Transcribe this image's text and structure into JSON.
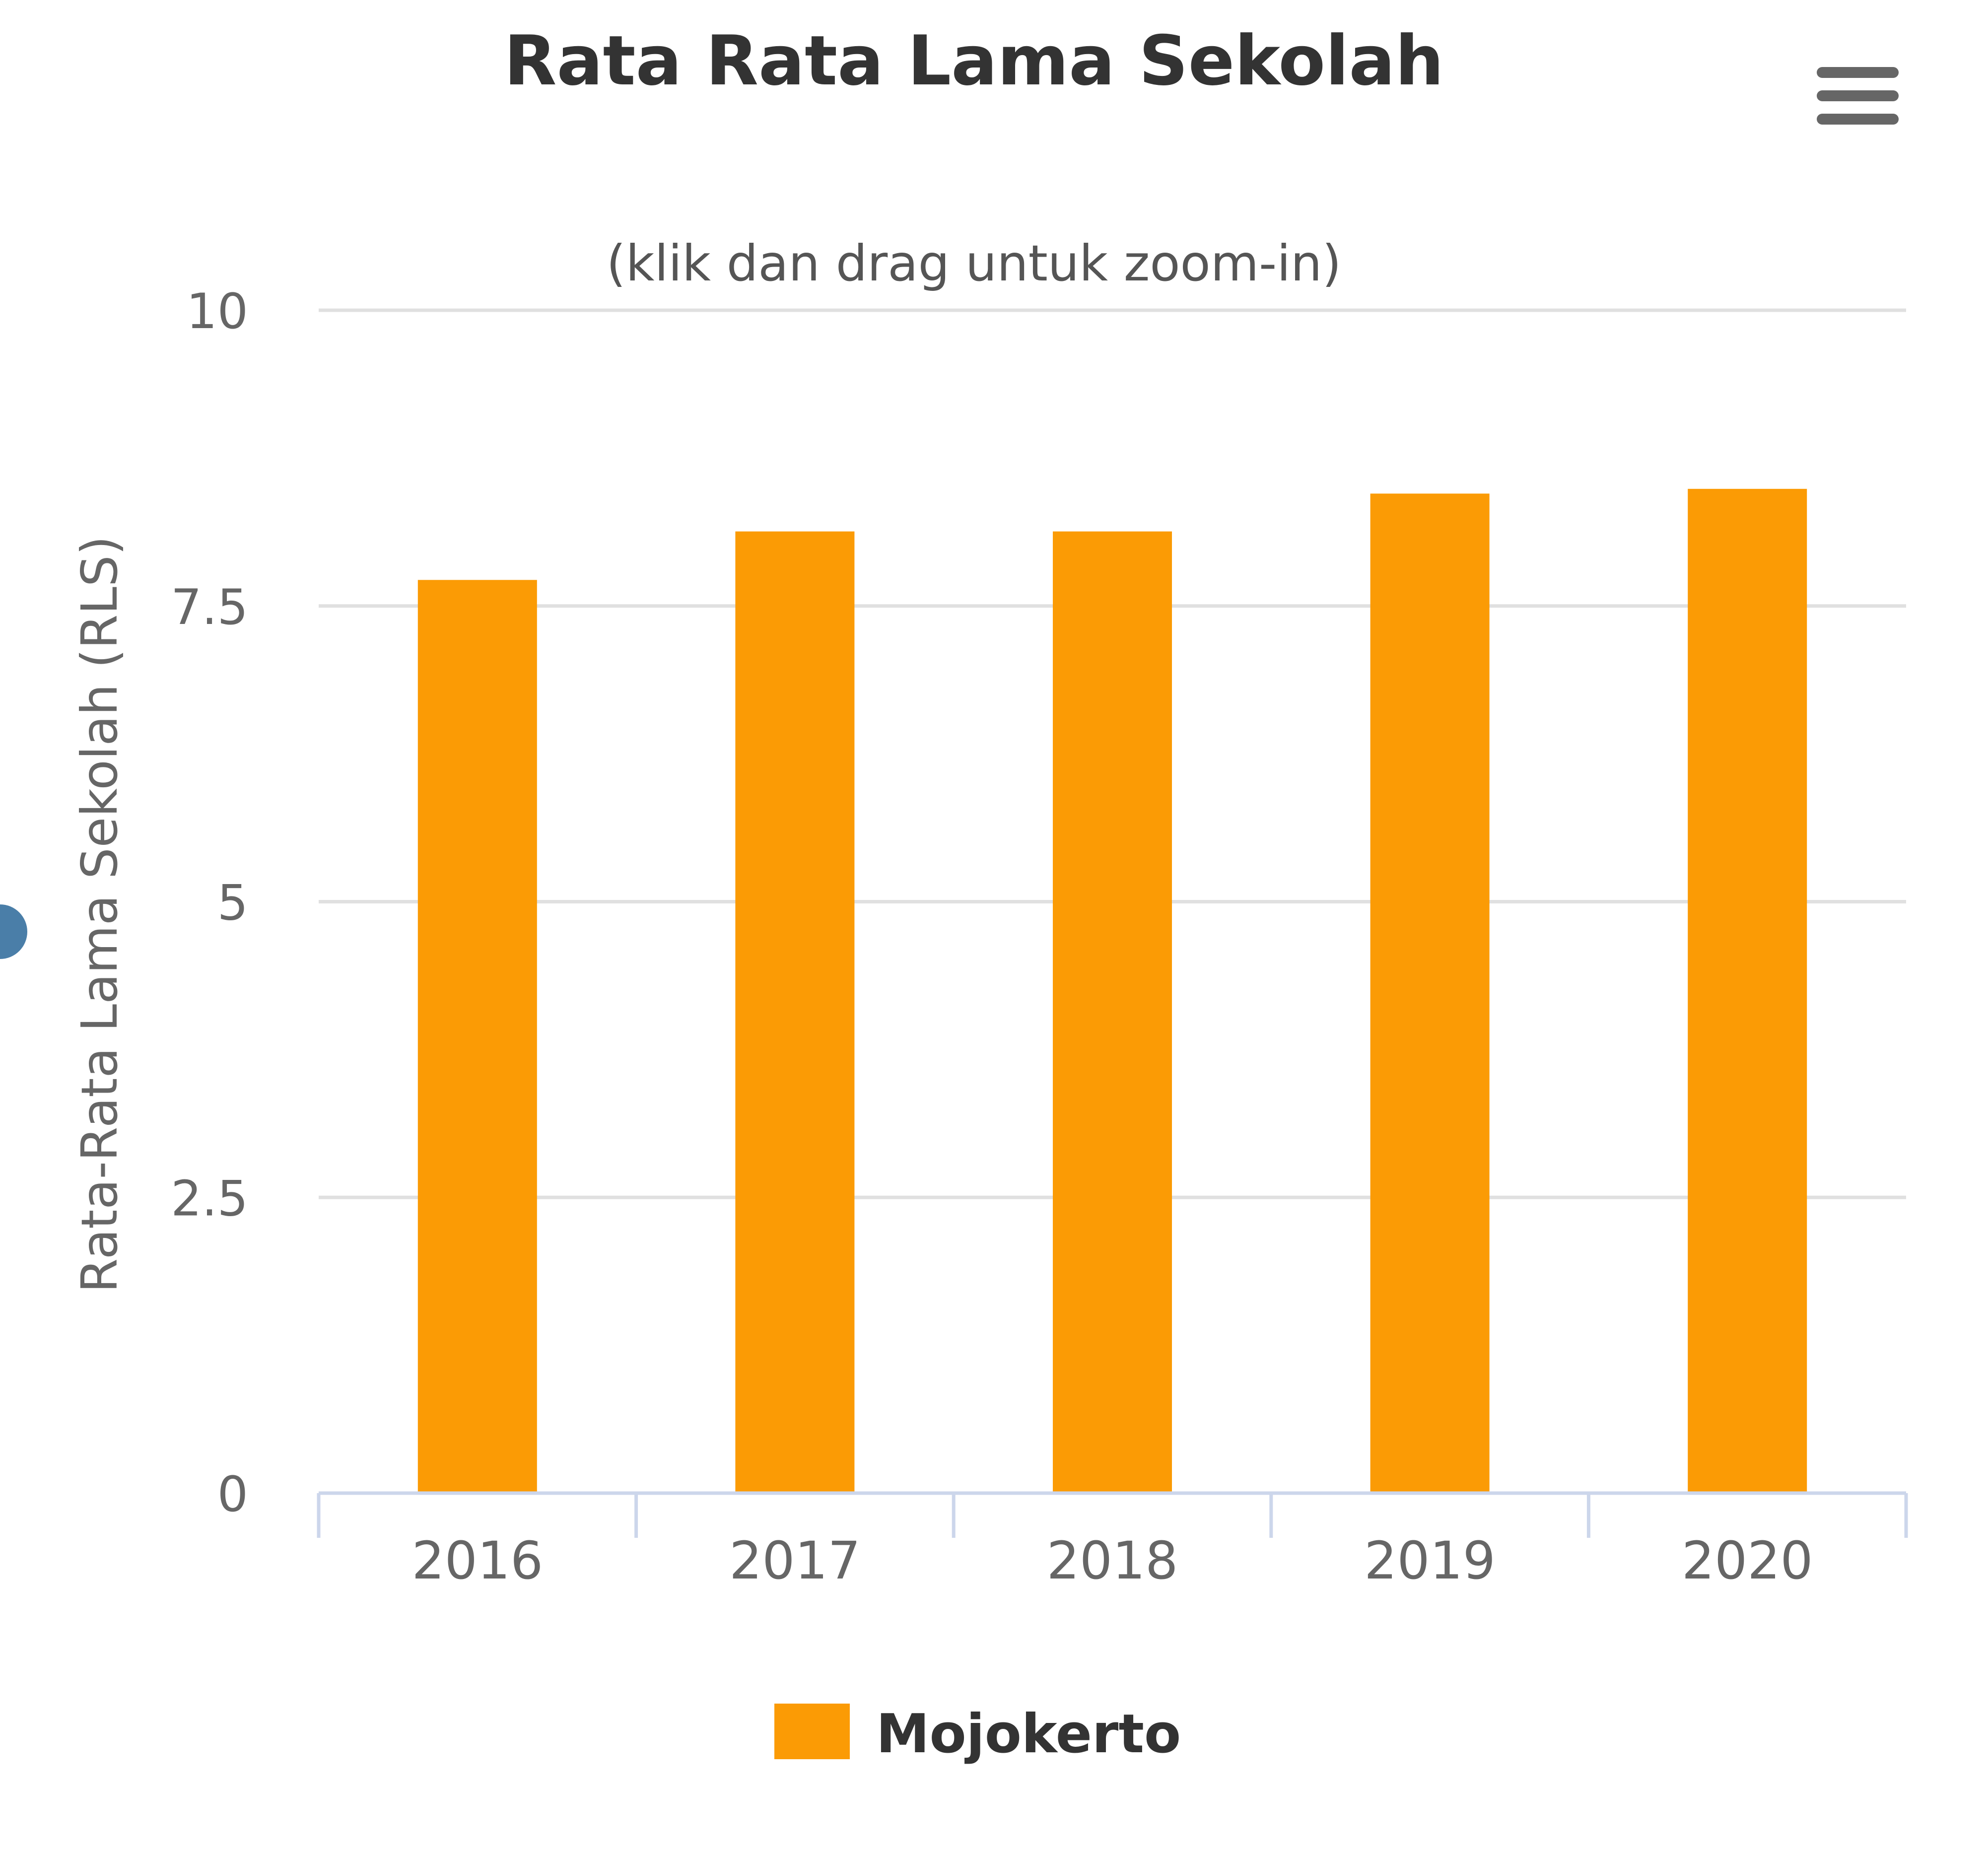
{
  "chart_data": {
    "type": "bar",
    "title": "Rata Rata Lama Sekolah",
    "subtitle": "(klik dan drag untuk zoom-in)",
    "xlabel": "",
    "ylabel": "Rata-Rata Lama Sekolah (RLS)",
    "categories": [
      "2016",
      "2017",
      "2018",
      "2019",
      "2020"
    ],
    "series": [
      {
        "name": "Mojokerto",
        "values": [
          7.72,
          8.13,
          8.13,
          8.45,
          8.49
        ],
        "color": "#FB9B05"
      }
    ],
    "ylim": [
      0,
      10
    ],
    "yticks": [
      "0",
      "2.5",
      "5",
      "7.5",
      "10"
    ],
    "grid": true,
    "legend_position": "bottom-center"
  },
  "colors": {
    "bar": "#FB9B05",
    "grid": "#e0e0e0",
    "axis": "#ccd6eb",
    "menu_icon": "#666666",
    "side_dot": "#4a7ea8"
  },
  "icons": {
    "menu": "hamburger-menu-icon"
  }
}
